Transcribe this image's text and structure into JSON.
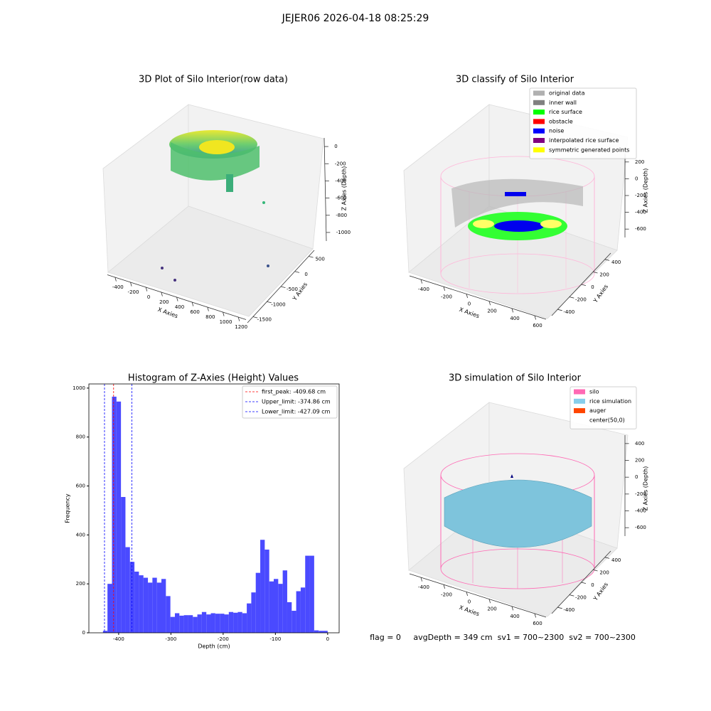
{
  "suptitle": "JEJER06 2026-04-18 08:25:29",
  "footer": "flag = 0     avgDepth = 349 cm  sv1 = 700~2300  sv2 = 700~2300",
  "chart_data": [
    {
      "type": "scatter3d",
      "title": "3D Plot of Silo Interior(row data)",
      "xlabel": "X Axies",
      "ylabel": "Y Axies",
      "zlabel": "Z Axies (Depth)",
      "xlim": [
        -500,
        1300
      ],
      "xticks": [
        -400,
        -200,
        0,
        200,
        400,
        600,
        800,
        1000,
        1200
      ],
      "ylim": [
        -1700,
        700
      ],
      "yticks": [
        -1500,
        -1000,
        -500,
        0,
        500
      ],
      "zlim": [
        -1100,
        100
      ],
      "zticks": [
        -1000,
        -800,
        -600,
        -400,
        -200,
        0
      ]
    },
    {
      "type": "scatter3d",
      "title": "3D classify of Silo Interior",
      "xlabel": "X Axies",
      "ylabel": "Y Axies",
      "zlabel": "Z Axies (Depth)",
      "xlim": [
        -500,
        700
      ],
      "xticks": [
        -400,
        -200,
        0,
        200,
        400,
        600
      ],
      "ylim": [
        -500,
        500
      ],
      "yticks": [
        -400,
        -200,
        0,
        200,
        400
      ],
      "zlim": [
        -700,
        300
      ],
      "zticks": [
        -600,
        -400,
        -200,
        0,
        200
      ],
      "legend": [
        {
          "name": "original data",
          "color": "#b0b0b0"
        },
        {
          "name": "inner wall",
          "color": "#808080"
        },
        {
          "name": "rice surface",
          "color": "#00ff00"
        },
        {
          "name": "obstacle",
          "color": "#ff0000"
        },
        {
          "name": "noise",
          "color": "#0000ff"
        },
        {
          "name": "interpolated rice surface",
          "color": "#800080"
        },
        {
          "name": "symmetric generated points",
          "color": "#ffff00"
        }
      ]
    },
    {
      "type": "histogram",
      "title": "Histogram of Z-Axies (Height) Values",
      "xlabel": "Depth (cm)",
      "ylabel": "Frequency",
      "color": "#4a4aff",
      "bins": [
        -430,
        -421.4,
        -412.8,
        -404.2,
        -395.6,
        -387,
        -378.4,
        -369.8,
        -361.2,
        -352.6,
        -344,
        -335.4,
        -326.8,
        -318.2,
        -309.6,
        -301,
        -292.4,
        -283.8,
        -275.2,
        -266.6,
        -258,
        -249.4,
        -240.8,
        -232.2,
        -223.6,
        -215,
        -206.4,
        -197.8,
        -189.2,
        -180.6,
        -172,
        -163.4,
        -154.8,
        -146.2,
        -137.6,
        -129,
        -120.4,
        -111.8,
        -103.2,
        -94.6,
        -86,
        -77.4,
        -68.8,
        -60.2,
        -51.6,
        -43,
        -34.4,
        -25.8,
        -17.2,
        -8.6,
        0
      ],
      "counts": [
        8,
        200,
        965,
        945,
        555,
        350,
        290,
        250,
        235,
        225,
        205,
        225,
        205,
        220,
        150,
        65,
        80,
        70,
        72,
        72,
        65,
        75,
        85,
        75,
        80,
        78,
        78,
        75,
        85,
        82,
        85,
        80,
        120,
        165,
        245,
        380,
        340,
        210,
        220,
        200,
        255,
        125,
        90,
        170,
        185,
        315,
        315,
        10,
        8,
        8
      ],
      "xlim": [
        -457,
        22
      ],
      "xticks": [
        -400,
        -300,
        -200,
        -100,
        0
      ],
      "ylim": [
        0,
        1017
      ],
      "yticks": [
        0,
        200,
        400,
        600,
        800,
        1000
      ],
      "lines": [
        {
          "name": "first_peak: -409.68 cm",
          "value": -409.68,
          "color": "#ff0000"
        },
        {
          "name": "Upper_limit: -374.86 cm",
          "value": -374.86,
          "color": "#0000ff"
        },
        {
          "name": "Lower_limit: -427.09 cm",
          "value": -427.09,
          "color": "#0000ff"
        }
      ]
    },
    {
      "type": "surface3d",
      "title": "3D simulation of Silo Interior",
      "xlabel": "X Axies",
      "ylabel": "Y Axies",
      "zlabel": "Z Axies (Depth)",
      "xlim": [
        -500,
        700
      ],
      "xticks": [
        -400,
        -200,
        0,
        200,
        400,
        600
      ],
      "ylim": [
        -500,
        500
      ],
      "yticks": [
        -400,
        -200,
        0,
        200,
        400
      ],
      "zlim": [
        -700,
        500
      ],
      "zticks": [
        -600,
        -400,
        -200,
        0,
        200,
        400
      ],
      "legend": [
        {
          "name": "silo",
          "color": "#ff69b4"
        },
        {
          "name": "rice simulation",
          "color": "#87ceeb"
        },
        {
          "name": "auger",
          "color": "#ff4500"
        },
        {
          "name": "center(50,0)",
          "color": "#ffffff"
        }
      ]
    }
  ]
}
